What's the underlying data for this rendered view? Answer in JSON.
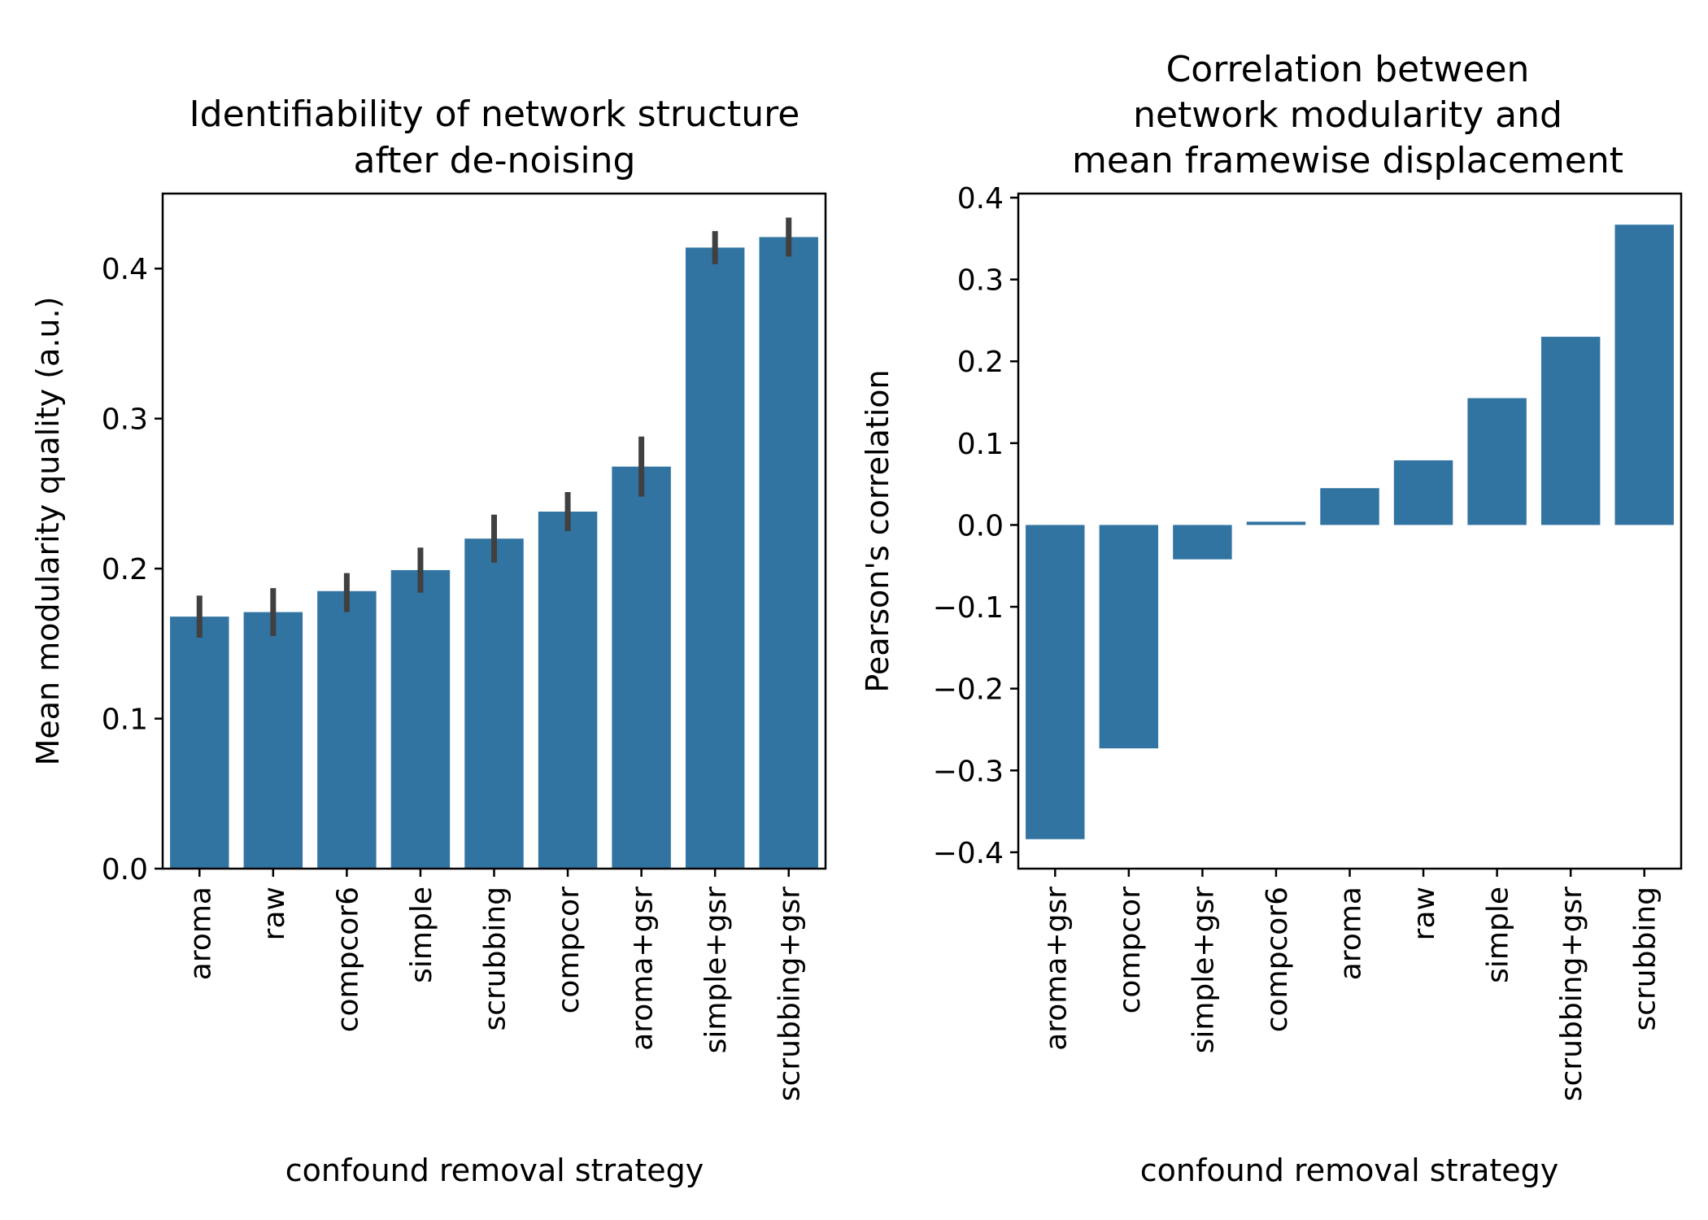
{
  "chart_data": [
    {
      "type": "bar",
      "title_lines": [
        "Identifiability of network structure",
        "after de-noising"
      ],
      "xlabel": "confound removal strategy",
      "ylabel": "Mean modularity quality (a.u.)",
      "categories": [
        "aroma",
        "raw",
        "compcor6",
        "simple",
        "scrubbing",
        "compcor",
        "aroma+gsr",
        "simple+gsr",
        "scrubbing+gsr"
      ],
      "values": [
        0.168,
        0.171,
        0.185,
        0.199,
        0.22,
        0.238,
        0.268,
        0.414,
        0.421
      ],
      "error_bars": [
        [
          0.154,
          0.182
        ],
        [
          0.155,
          0.187
        ],
        [
          0.171,
          0.197
        ],
        [
          0.184,
          0.214
        ],
        [
          0.204,
          0.236
        ],
        [
          0.225,
          0.251
        ],
        [
          0.248,
          0.288
        ],
        [
          0.403,
          0.425
        ],
        [
          0.408,
          0.434
        ]
      ],
      "ylim": [
        0,
        0.45
      ],
      "yticks": [
        0.0,
        0.1,
        0.2,
        0.3,
        0.4
      ],
      "ytick_labels": [
        "0.0",
        "0.1",
        "0.2",
        "0.3",
        "0.4"
      ],
      "bar_color": "#3274a1",
      "error_color": "#404040"
    },
    {
      "type": "bar",
      "title_lines": [
        "Correlation between",
        "network modularity and",
        "mean framewise displacement"
      ],
      "xlabel": "confound removal strategy",
      "ylabel": "Pearson's correlation",
      "categories": [
        "aroma+gsr",
        "compcor",
        "simple+gsr",
        "compcor6",
        "aroma",
        "raw",
        "simple",
        "scrubbing+gsr",
        "scrubbing"
      ],
      "values": [
        -0.384,
        -0.273,
        -0.042,
        0.004,
        0.045,
        0.079,
        0.155,
        0.23,
        0.367
      ],
      "ylim": [
        -0.42,
        0.405
      ],
      "yticks": [
        -0.4,
        -0.3,
        -0.2,
        -0.1,
        0.0,
        0.1,
        0.2,
        0.3,
        0.4
      ],
      "ytick_labels": [
        "−0.4",
        "−0.3",
        "−0.2",
        "−0.1",
        "0.0",
        "0.1",
        "0.2",
        "0.3",
        "0.4"
      ],
      "bar_color": "#3274a1"
    }
  ]
}
